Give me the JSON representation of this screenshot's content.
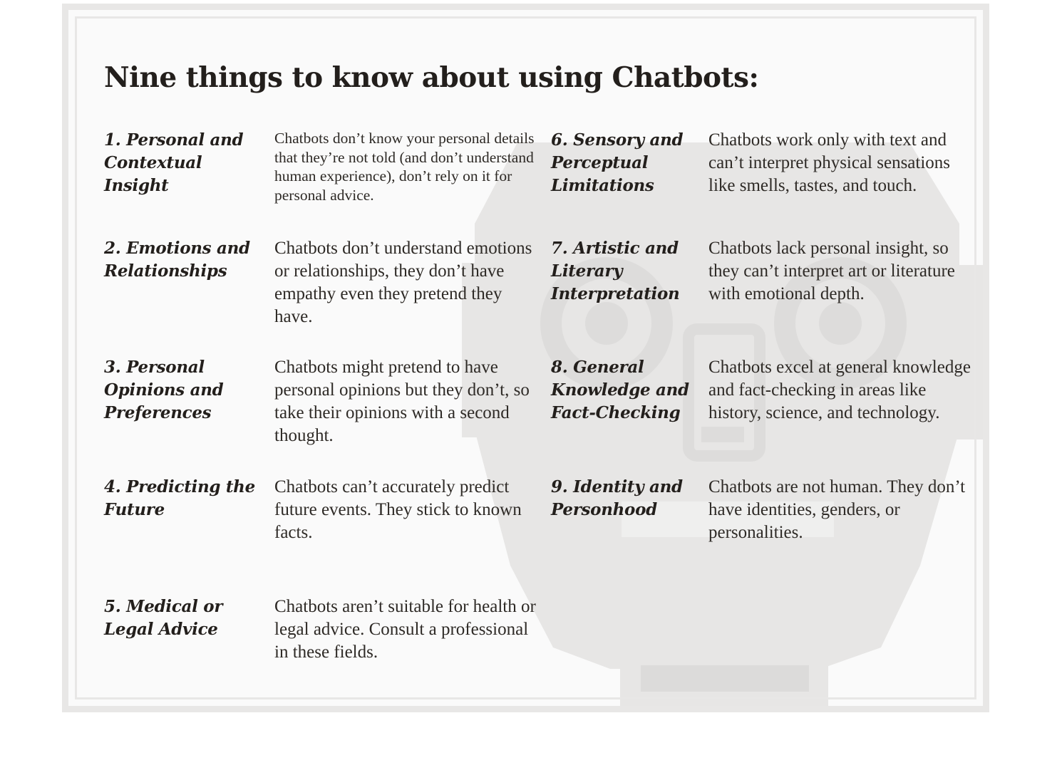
{
  "title": "Nine things to know about using Chatbots:",
  "items": [
    {
      "label": "1. Personal and Contextual Insight",
      "description": "Chatbots don’t know your personal details that they’re not told (and don’t understand human experience), don’t rely on it for personal advice."
    },
    {
      "label": "2. Emotions and Relationships",
      "description": "Chatbots don’t understand emotions or relationships, they don’t have empathy even they pretend they have."
    },
    {
      "label": "3. Personal Opinions and Preferences",
      "description": "Chatbots might pretend to have personal opinions but they don’t, so take their opinions with a second thought."
    },
    {
      "label": "4. Predicting the Future",
      "description": "Chatbots can’t accurately predict future events. They stick to known facts."
    },
    {
      "label": "5. Medical or Legal Advice",
      "description": "Chatbots aren’t suitable for health or legal advice. Consult a professional in these fields."
    },
    {
      "label": "6. Sensory and Perceptual Limitations",
      "description": "Chatbots work only with text and can’t interpret physical sensations like smells, tastes, and touch."
    },
    {
      "label": "7. Artistic and Literary Interpretation",
      "description": "Chatbots lack personal insight, so they can’t interpret art or literature with emotional depth."
    },
    {
      "label": "8. General Knowledge and Fact-Checking",
      "description": "Chatbots excel at general knowledge and fact-checking in areas like history, science, and technology."
    },
    {
      "label": "9. Identity and Personhood",
      "description": "Chatbots are not human. They don’t have identities, genders, or personalities."
    }
  ],
  "colors": {
    "frame": "#e8e7e6",
    "panel": "#fafafa",
    "robot_watermark": "#e7e6e5",
    "text": "#2a2622"
  },
  "icons": {
    "background": "robot-head-watermark-icon"
  }
}
